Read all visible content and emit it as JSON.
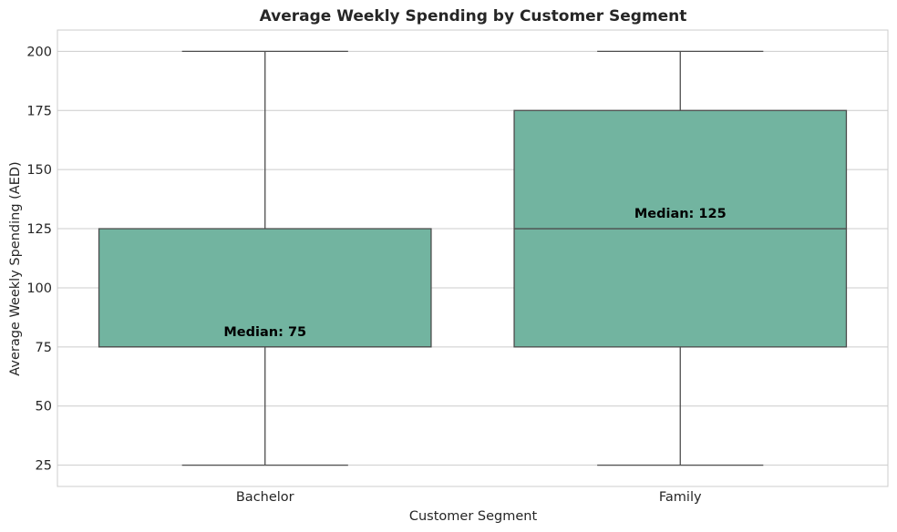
{
  "chart_data": {
    "type": "boxplot",
    "title": "Average Weekly Spending by Customer Segment",
    "xlabel": "Customer Segment",
    "ylabel": "Average Weekly Spending (AED)",
    "ylim": [
      16,
      209
    ],
    "yticks": [
      25,
      50,
      75,
      100,
      125,
      150,
      175,
      200
    ],
    "grid": true,
    "box_color": "#72b4a0",
    "line_color": "#4d4d4d",
    "categories": [
      "Bachelor",
      "Family"
    ],
    "boxes": [
      {
        "category": "Bachelor",
        "min": 25,
        "q1": 75,
        "median": 75,
        "q3": 125,
        "max": 200,
        "median_label": "Median: 75"
      },
      {
        "category": "Family",
        "min": 25,
        "q1": 75,
        "median": 125,
        "q3": 175,
        "max": 200,
        "median_label": "Median: 125"
      }
    ]
  }
}
